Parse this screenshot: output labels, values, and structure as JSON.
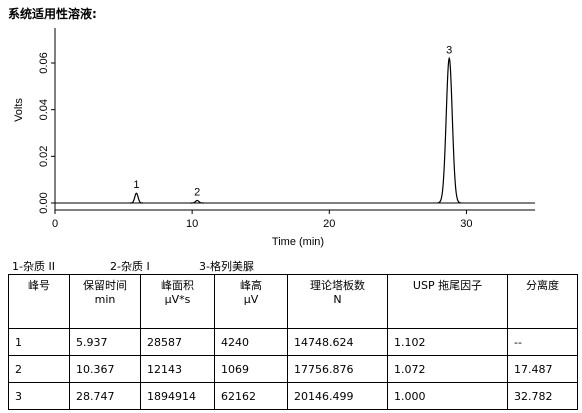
{
  "title": "系统适用性溶液:",
  "chart_data": {
    "type": "chromatogram",
    "x_label": "Time (min)",
    "y_label": "Volts",
    "xlim": [
      0,
      35
    ],
    "ylim": [
      -0.003,
      0.075
    ],
    "xticks": [
      0,
      10,
      20,
      30
    ],
    "yticks": [
      {
        "value": 0,
        "label": "0.00"
      },
      {
        "value": 0.02,
        "label": "0.02"
      },
      {
        "value": 0.04,
        "label": "0.04"
      },
      {
        "value": 0.06,
        "label": "0.06"
      }
    ],
    "color": "#000000",
    "peaks": [
      {
        "label": "1",
        "x": 5.937,
        "height": 0.0042
      },
      {
        "label": "2",
        "x": 10.367,
        "height": 0.0011
      },
      {
        "label": "3",
        "x": 28.747,
        "height": 0.062
      }
    ]
  },
  "legend": [
    "1-杂质 II",
    "2-杂质 I",
    "3-格列美脲"
  ],
  "table": {
    "header": [
      {
        "title": "峰号"
      },
      {
        "title": "保留时间",
        "unit": "min"
      },
      {
        "title": "峰面积",
        "unit": "μV*s"
      },
      {
        "title": "峰高",
        "unit": "μV"
      },
      {
        "title": "理论塔板数",
        "unit": "N"
      },
      {
        "title": "USP 拖尾因子"
      },
      {
        "title": "分离度"
      }
    ],
    "rows": [
      [
        "1",
        "5.937",
        "28587",
        "4240",
        "14748.624",
        "1.102",
        "--"
      ],
      [
        "2",
        "10.367",
        "12143",
        "1069",
        "17756.876",
        "1.072",
        "17.487"
      ],
      [
        "3",
        "28.747",
        "1894914",
        "62162",
        "20146.499",
        "1.000",
        "32.782"
      ]
    ]
  }
}
